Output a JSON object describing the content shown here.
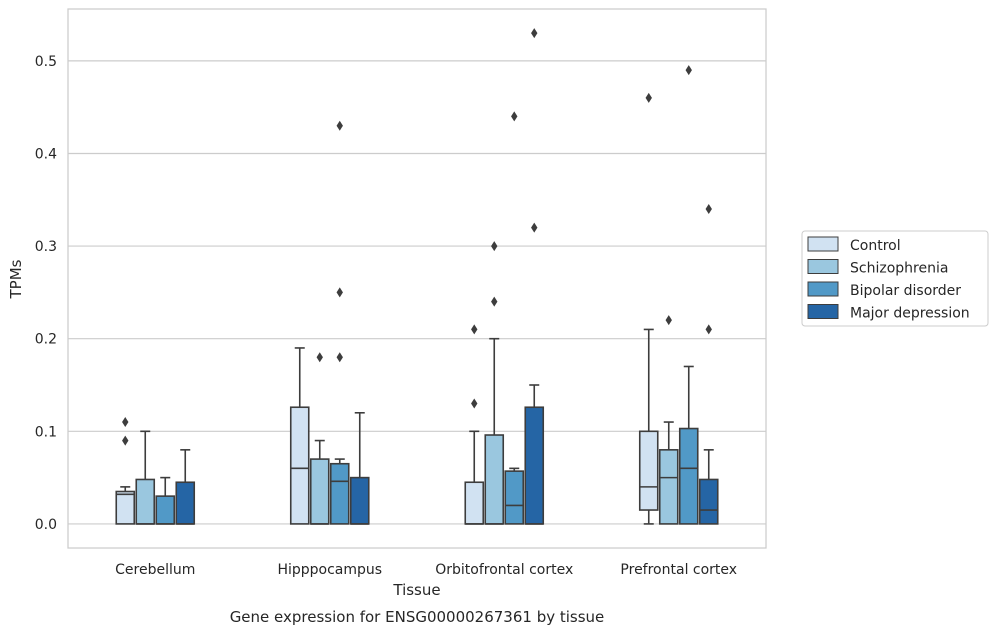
{
  "chart_data": {
    "type": "box",
    "xlabel": "Tissue",
    "ylabel": "TPMs",
    "caption": "Gene expression for ENSG00000267361 by tissue",
    "ylim": [
      -0.026,
      0.556
    ],
    "yticks": [
      "0.0",
      "0.1",
      "0.2",
      "0.3",
      "0.4",
      "0.5"
    ],
    "ytick_values": [
      0.0,
      0.1,
      0.2,
      0.3,
      0.4,
      0.5
    ],
    "grid": "horizontal",
    "legend_position": "right",
    "categories": [
      "Cerebellum",
      "Hipppocampus",
      "Orbitofrontal cortex",
      "Prefrontal cortex"
    ],
    "series": [
      {
        "name": "Control",
        "color": "#d1e2f2",
        "boxes": [
          {
            "min": 0.0,
            "q1": 0.0,
            "median": 0.032,
            "q3": 0.035,
            "max": 0.04,
            "outliers": [
              0.09,
              0.11
            ]
          },
          {
            "min": 0.0,
            "q1": 0.0,
            "median": 0.06,
            "q3": 0.126,
            "max": 0.19,
            "outliers": []
          },
          {
            "min": 0.0,
            "q1": 0.0,
            "median": 0.0,
            "q3": 0.045,
            "max": 0.1,
            "outliers": [
              0.13,
              0.21
            ]
          },
          {
            "min": 0.0,
            "q1": 0.015,
            "median": 0.04,
            "q3": 0.1,
            "max": 0.21,
            "outliers": [
              0.46
            ]
          }
        ]
      },
      {
        "name": "Schizophrenia",
        "color": "#9ac7df",
        "boxes": [
          {
            "min": 0.0,
            "q1": 0.0,
            "median": 0.0,
            "q3": 0.048,
            "max": 0.1,
            "outliers": []
          },
          {
            "min": 0.0,
            "q1": 0.0,
            "median": 0.0,
            "q3": 0.07,
            "max": 0.09,
            "outliers": [
              0.18
            ]
          },
          {
            "min": 0.0,
            "q1": 0.0,
            "median": 0.0,
            "q3": 0.096,
            "max": 0.2,
            "outliers": [
              0.24,
              0.3
            ]
          },
          {
            "min": 0.0,
            "q1": 0.0,
            "median": 0.05,
            "q3": 0.08,
            "max": 0.11,
            "outliers": [
              0.22
            ]
          }
        ]
      },
      {
        "name": "Bipolar disorder",
        "color": "#5199c7",
        "boxes": [
          {
            "min": 0.0,
            "q1": 0.0,
            "median": 0.0,
            "q3": 0.03,
            "max": 0.05,
            "outliers": []
          },
          {
            "min": 0.0,
            "q1": 0.0,
            "median": 0.046,
            "q3": 0.065,
            "max": 0.07,
            "outliers": [
              0.18,
              0.25,
              0.43
            ]
          },
          {
            "min": 0.0,
            "q1": 0.0,
            "median": 0.02,
            "q3": 0.057,
            "max": 0.06,
            "outliers": [
              0.44
            ]
          },
          {
            "min": 0.0,
            "q1": 0.0,
            "median": 0.06,
            "q3": 0.103,
            "max": 0.17,
            "outliers": [
              0.49
            ]
          }
        ]
      },
      {
        "name": "Major depression",
        "color": "#2565a5",
        "boxes": [
          {
            "min": 0.0,
            "q1": 0.0,
            "median": 0.0,
            "q3": 0.045,
            "max": 0.08,
            "outliers": []
          },
          {
            "min": 0.0,
            "q1": 0.0,
            "median": 0.0,
            "q3": 0.05,
            "max": 0.12,
            "outliers": []
          },
          {
            "min": 0.0,
            "q1": 0.0,
            "median": 0.0,
            "q3": 0.126,
            "max": 0.15,
            "outliers": [
              0.32,
              0.53
            ]
          },
          {
            "min": 0.0,
            "q1": 0.0,
            "median": 0.015,
            "q3": 0.048,
            "max": 0.08,
            "outliers": [
              0.21,
              0.34
            ]
          }
        ]
      }
    ]
  }
}
